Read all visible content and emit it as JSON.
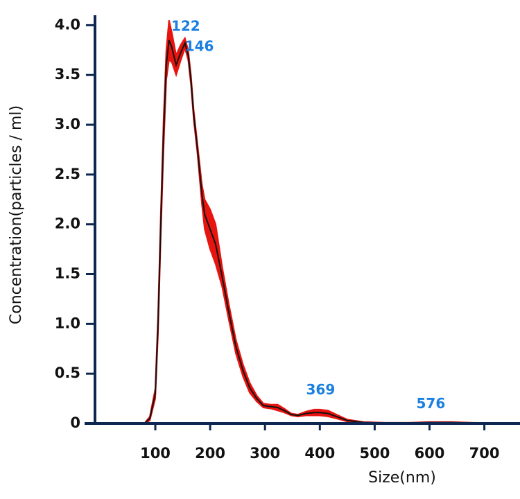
{
  "chart_data": {
    "type": "line",
    "x_label": "Size(nm)",
    "y_label": "Concentration(particles / ml)",
    "x": [
      80,
      90,
      100,
      105,
      110,
      115,
      120,
      125,
      130,
      138,
      146,
      154,
      160,
      165,
      170,
      177,
      185,
      190,
      200,
      210,
      222,
      234,
      247,
      260,
      272,
      285,
      297,
      310,
      323,
      335,
      348,
      360,
      375,
      390,
      400,
      415,
      430,
      450,
      480,
      520,
      560,
      600,
      640,
      680,
      720,
      760
    ],
    "series": [
      {
        "color": "#111111",
        "band_color": "#e8140f",
        "values": [
          0,
          0.05,
          0.3,
          1.0,
          2.0,
          2.9,
          3.6,
          3.85,
          3.78,
          3.6,
          3.72,
          3.82,
          3.7,
          3.45,
          3.1,
          2.75,
          2.3,
          2.1,
          1.95,
          1.8,
          1.47,
          1.12,
          0.77,
          0.53,
          0.36,
          0.25,
          0.18,
          0.17,
          0.16,
          0.13,
          0.09,
          0.08,
          0.1,
          0.11,
          0.11,
          0.1,
          0.07,
          0.03,
          0.01,
          0.005,
          0.005,
          0.01,
          0.01,
          0.005,
          0.003,
          0
        ],
        "error": [
          0,
          0.02,
          0.05,
          0.1,
          0.12,
          0.15,
          0.15,
          0.2,
          0.15,
          0.1,
          0.08,
          0.05,
          0.05,
          0.05,
          0.05,
          0.05,
          0.1,
          0.15,
          0.2,
          0.2,
          0.1,
          0.08,
          0.07,
          0.06,
          0.05,
          0.03,
          0.02,
          0.02,
          0.03,
          0.02,
          0.01,
          0.01,
          0.02,
          0.03,
          0.03,
          0.03,
          0.02,
          0.01,
          0.005,
          0.003,
          0.003,
          0.005,
          0.005,
          0.003,
          0.002,
          0
        ]
      }
    ],
    "annotations": [
      {
        "text": "122",
        "x": 129,
        "y": 3.98
      },
      {
        "text": "146",
        "x": 154,
        "y": 3.78
      },
      {
        "text": "369",
        "x": 375,
        "y": 0.33
      },
      {
        "text": "576",
        "x": 576,
        "y": 0.19
      }
    ],
    "xlim": [
      -10,
      765
    ],
    "ylim": [
      0,
      4.1
    ],
    "xticks": [
      100,
      200,
      300,
      400,
      500,
      600,
      700
    ],
    "yticks": [
      0,
      0.5,
      {
        "value": 1.0,
        "label": "1.0"
      },
      1.5,
      {
        "value": 2.0,
        "label": "2.0"
      },
      2.5,
      {
        "value": 3.0,
        "label": "3.0"
      },
      3.5,
      {
        "value": 4.0,
        "label": "4.0"
      }
    ],
    "axis_color": "#0d2750"
  }
}
